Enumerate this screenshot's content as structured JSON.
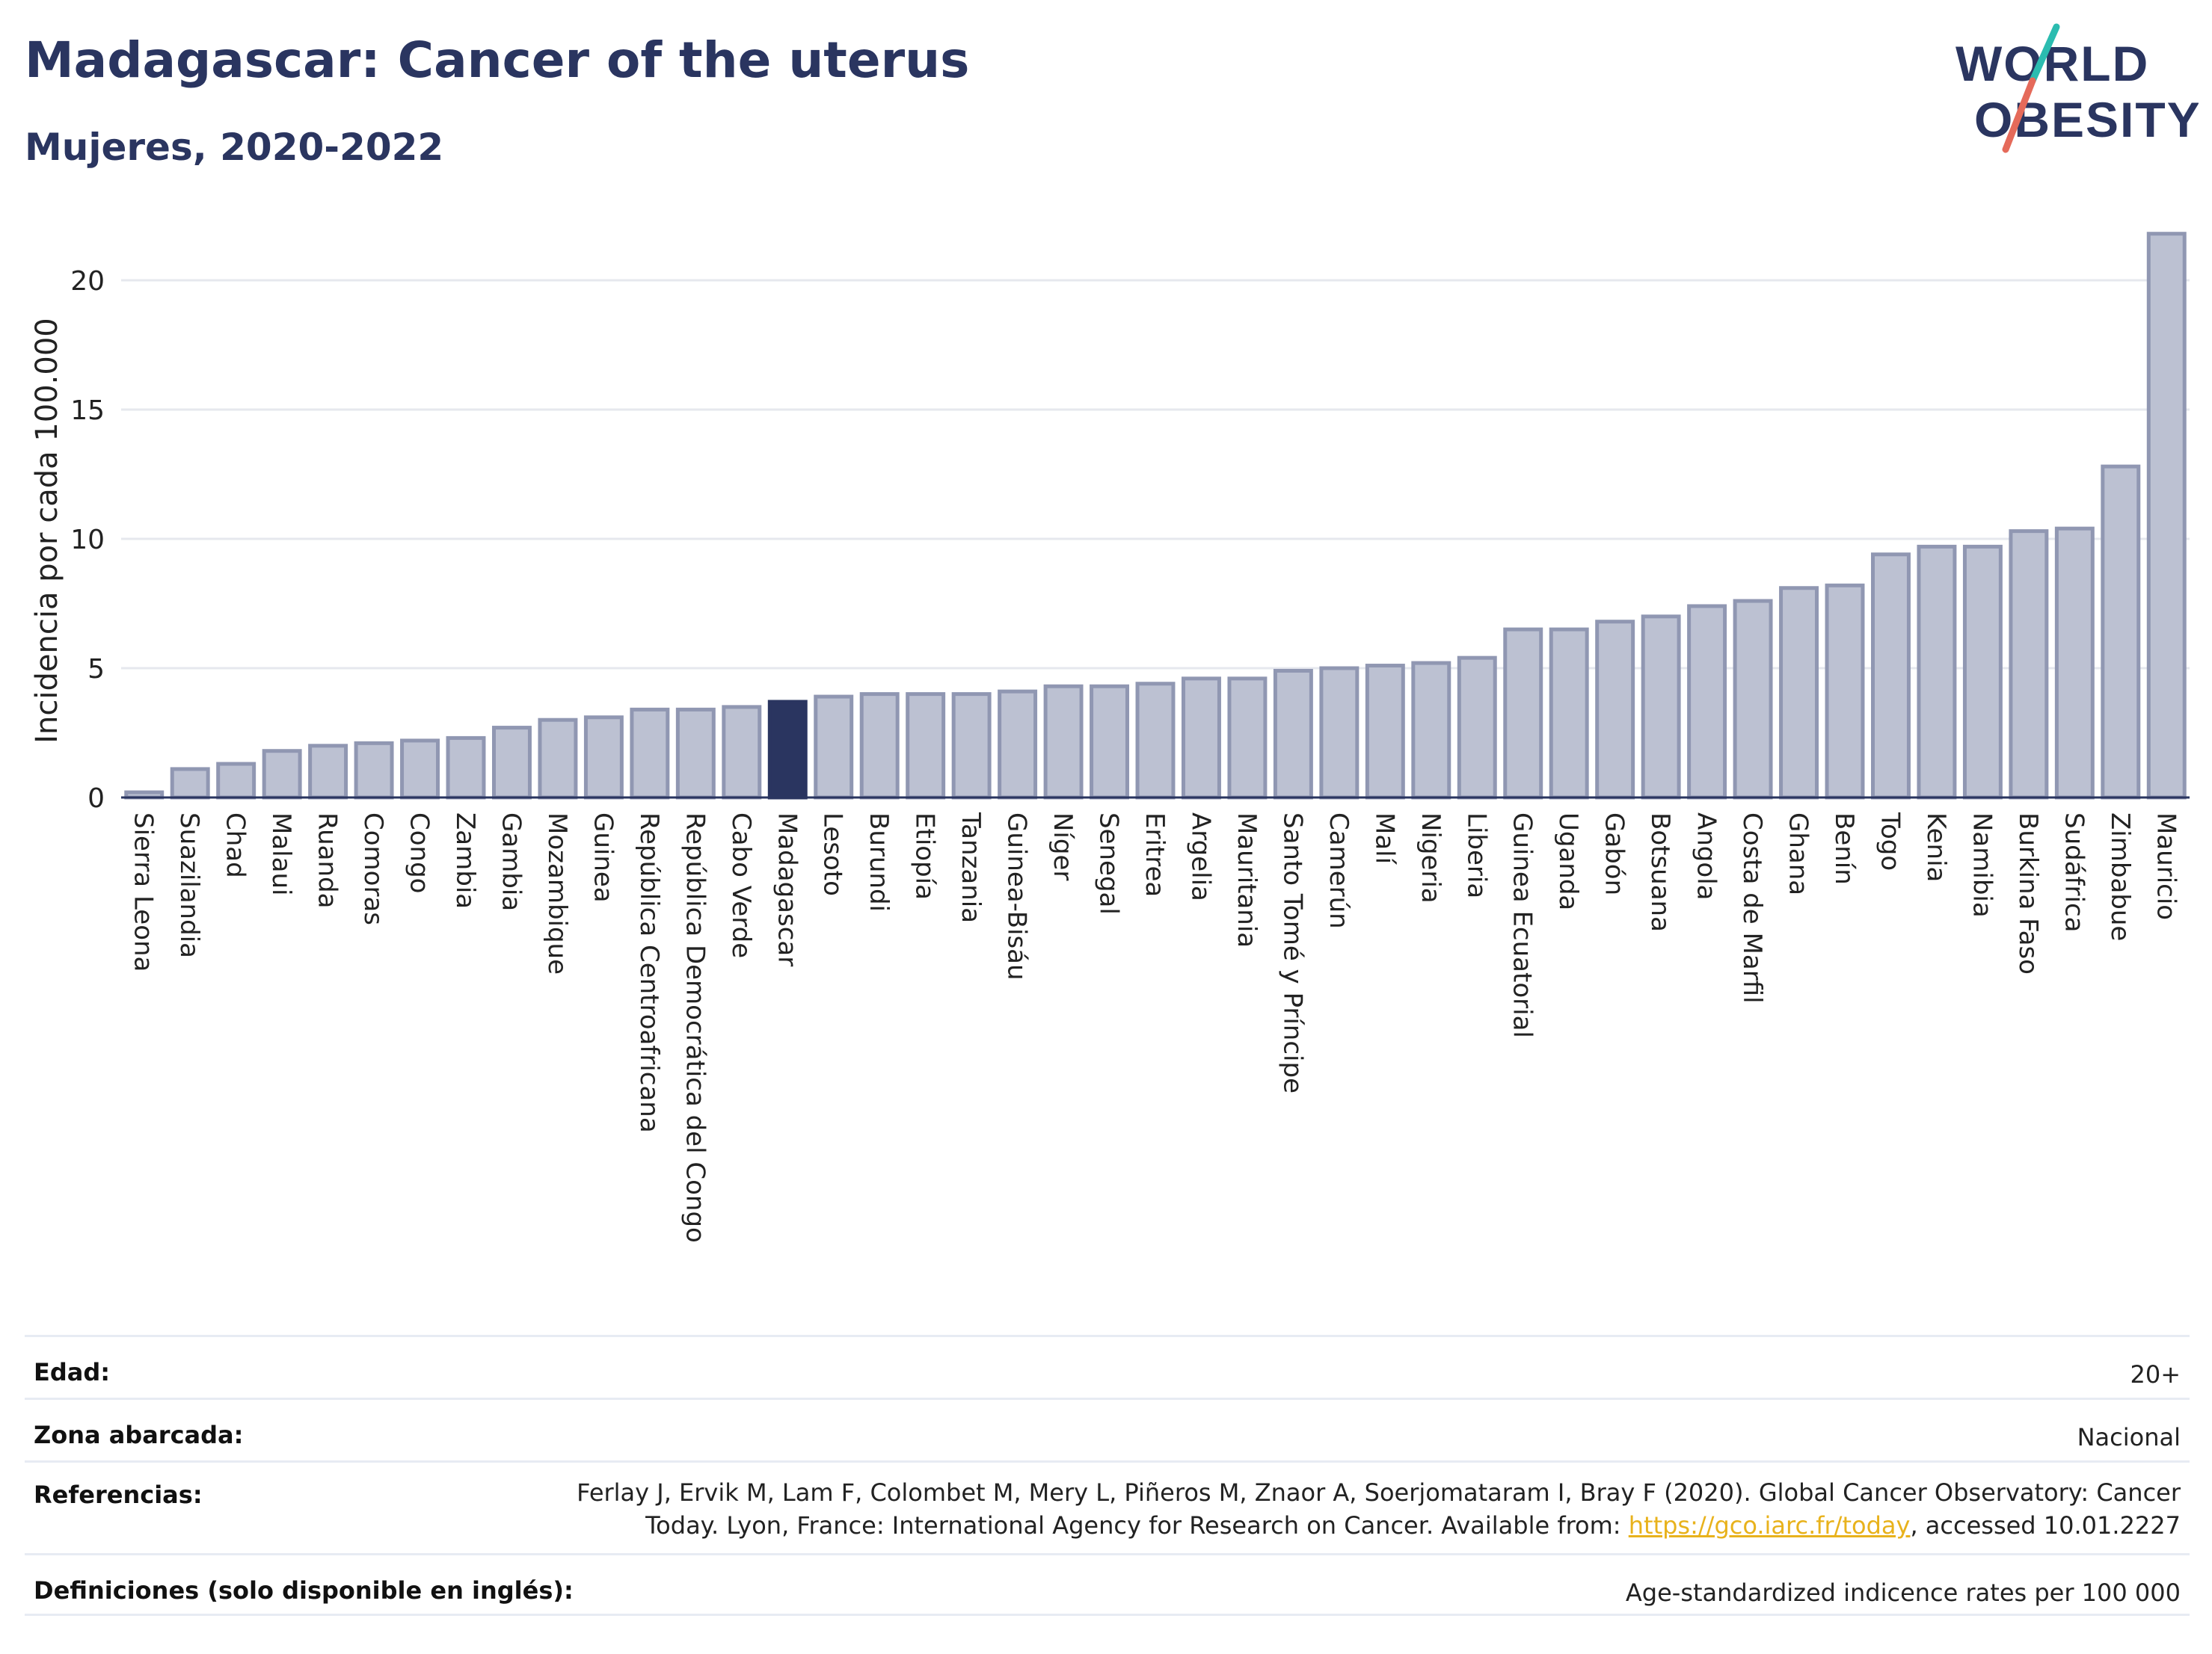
{
  "header": {
    "title": "Madagascar: Cancer of the uterus",
    "subtitle": "Mujeres, 2020-2022"
  },
  "logo": {
    "line1": "WORLD",
    "line2": "OBESITY"
  },
  "colors": {
    "bar": "#bcc1d2",
    "bar_stroke": "#9097b2",
    "highlight": "#2a3560",
    "text": "#2a3560",
    "grid": "#e6e8ee"
  },
  "chart_data": {
    "type": "bar",
    "ylabel": "Incidencia por cada 100.000",
    "xlabel": "",
    "ylim": [
      0,
      22.5
    ],
    "yticks": [
      0,
      5,
      10,
      15,
      20
    ],
    "highlight": "Madagascar",
    "grid": true,
    "categories": [
      "Sierra Leona",
      "Suazilandia",
      "Chad",
      "Malaui",
      "Ruanda",
      "Comoras",
      "Congo",
      "Zambia",
      "Gambia",
      "Mozambique",
      "Guinea",
      "República Centroafricana",
      "República Democrática del Congo",
      "Cabo Verde",
      "Madagascar",
      "Lesoto",
      "Burundi",
      "Etiopía",
      "Tanzania",
      "Guinea-Bisáu",
      "Níger",
      "Senegal",
      "Eritrea",
      "Argelia",
      "Mauritania",
      "Santo Tomé y Príncipe",
      "Camerún",
      "Malí",
      "Nigeria",
      "Liberia",
      "Guinea Ecuatorial",
      "Uganda",
      "Gabón",
      "Botsuana",
      "Angola",
      "Costa de Marfil",
      "Ghana",
      "Benín",
      "Togo",
      "Kenia",
      "Namibia",
      "Burkina Faso",
      "Sudáfrica",
      "Zimbabue",
      "Mauricio"
    ],
    "values": [
      0.2,
      1.1,
      1.3,
      1.8,
      2.0,
      2.1,
      2.2,
      2.3,
      2.7,
      3.0,
      3.1,
      3.4,
      3.4,
      3.5,
      3.7,
      3.9,
      4.0,
      4.0,
      4.0,
      4.1,
      4.3,
      4.3,
      4.4,
      4.6,
      4.6,
      4.9,
      5.0,
      5.1,
      5.2,
      5.4,
      6.5,
      6.5,
      6.8,
      7.0,
      7.4,
      7.6,
      8.1,
      8.2,
      9.4,
      9.7,
      9.7,
      10.3,
      10.4,
      12.8,
      21.8
    ]
  },
  "info": [
    {
      "label": "Edad:",
      "value": "20+"
    },
    {
      "label": "Zona abarcada:",
      "value": "Nacional"
    },
    {
      "label": "Referencias:",
      "value_pre": "Ferlay J, Ervik M, Lam F, Colombet M, Mery L, Piñeros M, Znaor A, Soerjomataram I, Bray F (2020). Global Cancer Observatory: Cancer Today. Lyon, France: International Agency for Research on Cancer. Available from: ",
      "link": "https://gco.iarc.fr/today",
      "value_post": ", accessed 10.01.2227"
    },
    {
      "label": "Definiciones (solo disponible en inglés):",
      "value": "Age-standardized indicence rates per 100 000"
    }
  ]
}
